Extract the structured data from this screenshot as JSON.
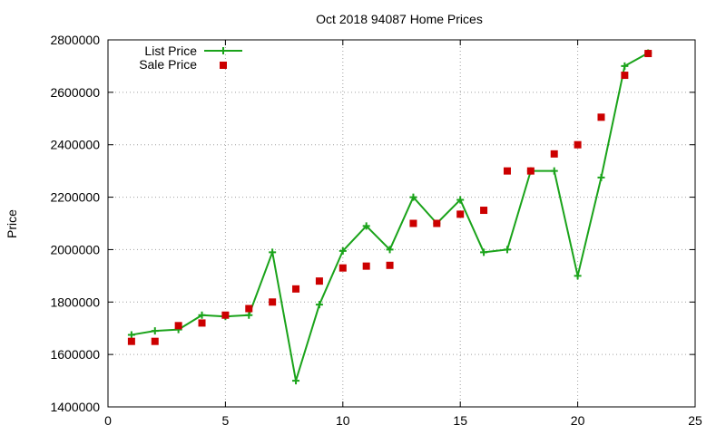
{
  "chart_data": {
    "type": "line",
    "title": "Oct 2018 94087 Home Prices",
    "xlabel": "",
    "ylabel": "Price",
    "xlim": [
      0,
      25
    ],
    "ylim": [
      1400000,
      2800000
    ],
    "x_ticks": [
      0,
      5,
      10,
      15,
      20,
      25
    ],
    "y_ticks": [
      1400000,
      1600000,
      1800000,
      2000000,
      2200000,
      2400000,
      2600000,
      2800000
    ],
    "x_tick_labels": [
      "0",
      "5",
      "10",
      "15",
      "20",
      "25"
    ],
    "y_tick_labels": [
      "1400000",
      "1600000",
      "1800000",
      "2000000",
      "2200000",
      "2400000",
      "2600000",
      "2800000"
    ],
    "grid": true,
    "legend_position": "top-left",
    "x": [
      1,
      2,
      3,
      4,
      5,
      6,
      7,
      8,
      9,
      10,
      11,
      12,
      13,
      14,
      15,
      16,
      17,
      18,
      19,
      20,
      21,
      22,
      23
    ],
    "series": [
      {
        "name": "List Price",
        "style": "line-with-plus-markers",
        "color": "#1aa31a",
        "values": [
          1675000,
          1690000,
          1695000,
          1750000,
          1745000,
          1750000,
          1990000,
          1500000,
          1790000,
          1995000,
          2090000,
          2000000,
          2200000,
          2100000,
          2190000,
          1990000,
          2000000,
          2300000,
          2300000,
          1900000,
          2275000,
          2700000,
          2750000
        ]
      },
      {
        "name": "Sale Price",
        "style": "square-markers",
        "color": "#cc0000",
        "values": [
          1650000,
          1650000,
          1710000,
          1720000,
          1750000,
          1775000,
          1800000,
          1850000,
          1880000,
          1930000,
          1937000,
          1940000,
          2100000,
          2100000,
          2135000,
          2150000,
          2300000,
          2300000,
          2365000,
          2400000,
          2505000,
          2665000,
          2748000
        ]
      }
    ]
  }
}
